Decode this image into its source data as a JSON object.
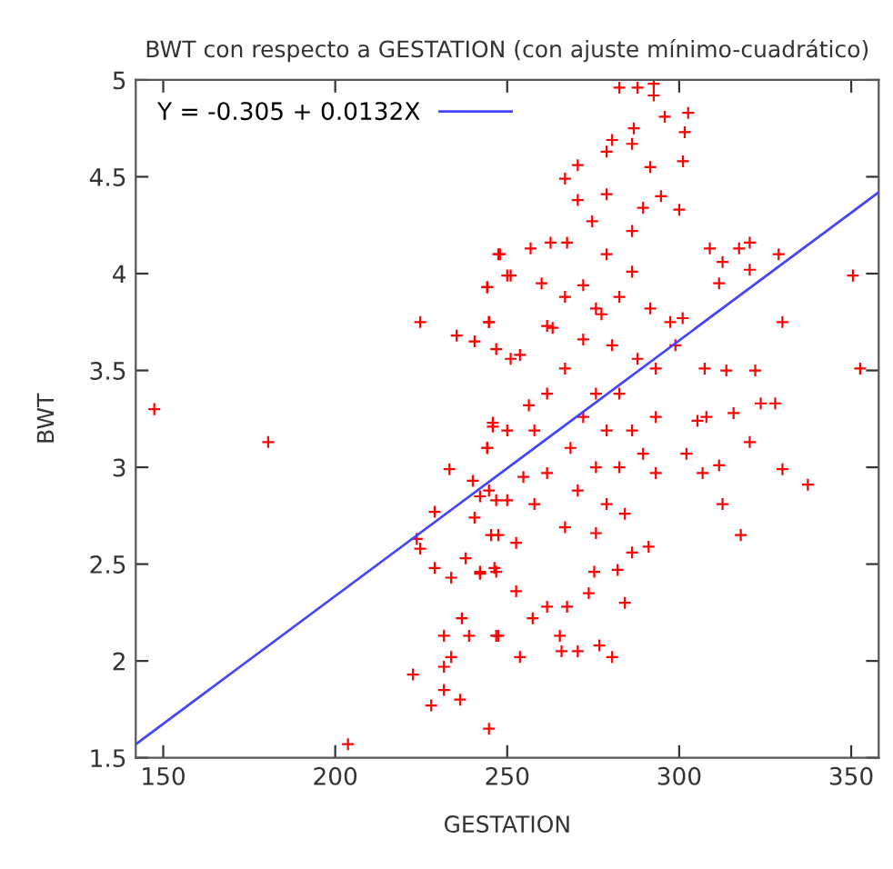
{
  "chart_data": {
    "type": "scatter",
    "title": "BWT con respecto a GESTATION (con ajuste mínimo-cuadrático)",
    "xlabel": "GESTATION",
    "ylabel": "BWT",
    "xlim": [
      142,
      358
    ],
    "ylim": [
      1.5,
      5
    ],
    "xticks": [
      150,
      200,
      250,
      300,
      350
    ],
    "yticks": [
      1.5,
      2,
      2.5,
      3,
      3.5,
      4,
      4.5,
      5
    ],
    "grid": false,
    "legend": "top left",
    "series": [
      {
        "color": "#ff0000",
        "marker": "cross",
        "x": [
          147.4,
          180.5,
          203.7,
          224.7,
          244.7,
          350.5,
          352.6,
          337.4,
          330,
          320.5,
          317.9,
          330,
          282.6,
          287.9,
          292.6,
          292.6,
          295.8,
          302.6,
          286.8,
          280.5,
          278.9,
          286.3,
          301.6,
          270.5,
          266.8,
          291.6,
          301.1,
          270.5,
          278.9,
          274.7,
          294.7,
          300,
          247.4,
          256.8,
          262.6,
          267.4,
          308.9,
          317.4,
          320.5,
          328.9,
          251,
          244.2,
          260,
          312.6,
          311.6,
          320.5,
          244.7,
          261.6,
          301,
          253.7,
          251,
          313.7,
          322.1,
          307.4,
          323.7,
          327.9,
          315.8,
          306.8,
          311.6,
          312.6,
          245.8,
          244.2,
          246.8,
          250,
          247.4,
          252.6,
          246.8,
          242.1,
          252.6,
          257.4,
          247.4,
          253.7,
          265.3,
          265.8,
          270.5,
          276.8,
          280.5,
          261.6,
          267.4,
          273.7,
          275.3,
          284.2,
          282.1,
          286.3,
          291.1,
          293.2,
          302.1,
          305.3,
          307.9,
          266.8,
          272.1,
          277.4,
          282.6,
          286.3,
          291.6,
          280.5,
          287.9,
          293.2,
          275.8,
          282.6,
          272.1,
          278.9,
          286.3,
          293.2,
          268.4,
          275.8,
          282.6,
          289.5,
          270.5,
          278.9,
          284.2,
          266.8,
          275.8,
          261.6,
          257.9,
          261.6,
          263.2,
          272.1,
          278.9,
          286.3,
          289.5,
          275.8,
          266.8,
          297.4,
          298.9,
          256.3,
          254.7,
          257.9,
          222.6,
          227.9,
          231.6,
          231.6,
          233.7,
          231.6,
          236.8,
          238.9,
          236.3,
          246.8,
          228.9,
          233.7,
          237.9,
          242.1,
          246.3,
          224.7,
          223.7,
          228.9,
          233.2,
          240.5,
          240,
          242.1,
          245.3,
          244.7,
          244.2,
          245.8,
          250,
          235.3,
          240.5,
          246.8,
          244.7,
          244.2,
          247.9,
          250
        ],
        "values": [
          3.3,
          3.13,
          1.57,
          3.75,
          1.65,
          3.99,
          3.51,
          2.91,
          2.99,
          3.13,
          2.65,
          3.75,
          4.96,
          4.96,
          4.98,
          4.92,
          4.81,
          4.83,
          4.75,
          4.69,
          4.63,
          4.67,
          4.73,
          4.56,
          4.49,
          4.55,
          4.58,
          4.38,
          4.41,
          4.27,
          4.4,
          4.33,
          4.1,
          4.13,
          4.16,
          4.16,
          4.13,
          4.13,
          4.16,
          4.1,
          3.99,
          3.93,
          3.95,
          4.06,
          3.95,
          4.02,
          3.75,
          3.73,
          3.77,
          3.58,
          3.56,
          3.5,
          3.5,
          3.51,
          3.33,
          3.33,
          3.28,
          2.97,
          3.01,
          2.81,
          3.21,
          3.1,
          2.83,
          2.83,
          2.65,
          2.61,
          2.46,
          2.45,
          2.36,
          2.22,
          2.13,
          2.02,
          2.13,
          2.05,
          2.05,
          2.08,
          2.02,
          2.28,
          2.28,
          2.35,
          2.46,
          2.3,
          2.47,
          2.56,
          2.59,
          2.97,
          3.07,
          3.24,
          3.26,
          3.51,
          3.66,
          3.79,
          3.88,
          4.01,
          3.82,
          3.63,
          3.56,
          3.51,
          3.38,
          3.38,
          3.26,
          3.19,
          3.19,
          3.26,
          3.1,
          3.0,
          3.0,
          3.07,
          2.88,
          2.81,
          2.76,
          2.69,
          2.66,
          3.38,
          3.19,
          2.97,
          3.72,
          3.94,
          4.1,
          4.22,
          4.34,
          3.82,
          3.88,
          3.75,
          3.63,
          3.32,
          2.95,
          2.81,
          1.93,
          1.77,
          1.85,
          1.97,
          2.02,
          2.13,
          2.22,
          2.13,
          1.8,
          2.13,
          2.48,
          2.43,
          2.53,
          2.46,
          2.48,
          2.58,
          2.63,
          2.77,
          2.99,
          2.74,
          2.93,
          2.85,
          2.65,
          2.88,
          3.1,
          3.23,
          3.19,
          3.68,
          3.65,
          3.61,
          3.75,
          3.93,
          4.1,
          3.99
        ]
      },
      {
        "type": "line",
        "name": "Y = -0.305 + 0.0132X",
        "color": "#4444ff",
        "x": [
          142,
          358
        ],
        "values": [
          1.57,
          4.42
        ]
      }
    ]
  }
}
